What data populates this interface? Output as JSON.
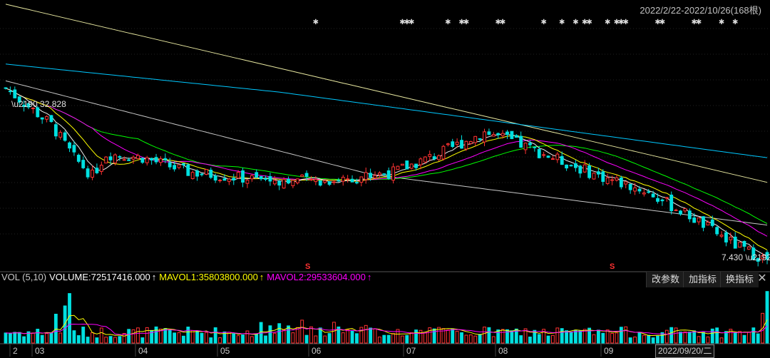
{
  "header": {
    "range_text": "2022/2/22-2022/10/26(168根)"
  },
  "price_panel": {
    "high_label": "32.828",
    "low_label": "7.430",
    "marker_symbol": "✱",
    "s_symbol": "S"
  },
  "volume_panel": {
    "indicator_label": "VOL (5,10)",
    "volume_text": "VOLUME:72517416.000",
    "mavol1_text": "MAVOL1:35803800.000",
    "mavol2_text": "MAVOL2:29533604.000",
    "arrow": "↑",
    "buttons": {
      "params": "改参数",
      "add": "加指标",
      "switch": "换指标"
    },
    "close": "✕"
  },
  "x_axis": {
    "labels": [
      "2",
      "03",
      "04",
      "05",
      "06",
      "07",
      "08",
      "09"
    ],
    "cursor_date": "2022/09/20/二"
  },
  "colors": {
    "up": "#ff3232",
    "down": "#00e0e0",
    "ma5": "#f0f0f0",
    "ma10": "#ffff00",
    "ma20": "#ff00ff",
    "ma30": "#00ff00",
    "ma60": "#c8c8c8",
    "ma120": "#00c8ff",
    "ma250": "#e8e8a0",
    "mavol1": "#ffff00",
    "mavol2": "#ff00ff"
  },
  "chart_data": {
    "type": "candlestick",
    "bars": 168,
    "price_range": [
      7.43,
      32.828
    ],
    "close_path_anchors": [
      [
        0,
        31.5
      ],
      [
        10,
        26.5
      ],
      [
        15,
        22.0
      ],
      [
        19,
        19.5
      ],
      [
        22,
        22.5
      ],
      [
        30,
        22.0
      ],
      [
        40,
        20.0
      ],
      [
        55,
        19.0
      ],
      [
        70,
        18.8
      ],
      [
        85,
        20.0
      ],
      [
        95,
        22.5
      ],
      [
        105,
        25.5
      ],
      [
        110,
        24.5
      ],
      [
        120,
        22.0
      ],
      [
        130,
        19.5
      ],
      [
        140,
        17.5
      ],
      [
        150,
        14.0
      ],
      [
        160,
        10.0
      ],
      [
        167,
        7.9
      ]
    ],
    "volume_range": [
      0,
      140000000
    ]
  }
}
